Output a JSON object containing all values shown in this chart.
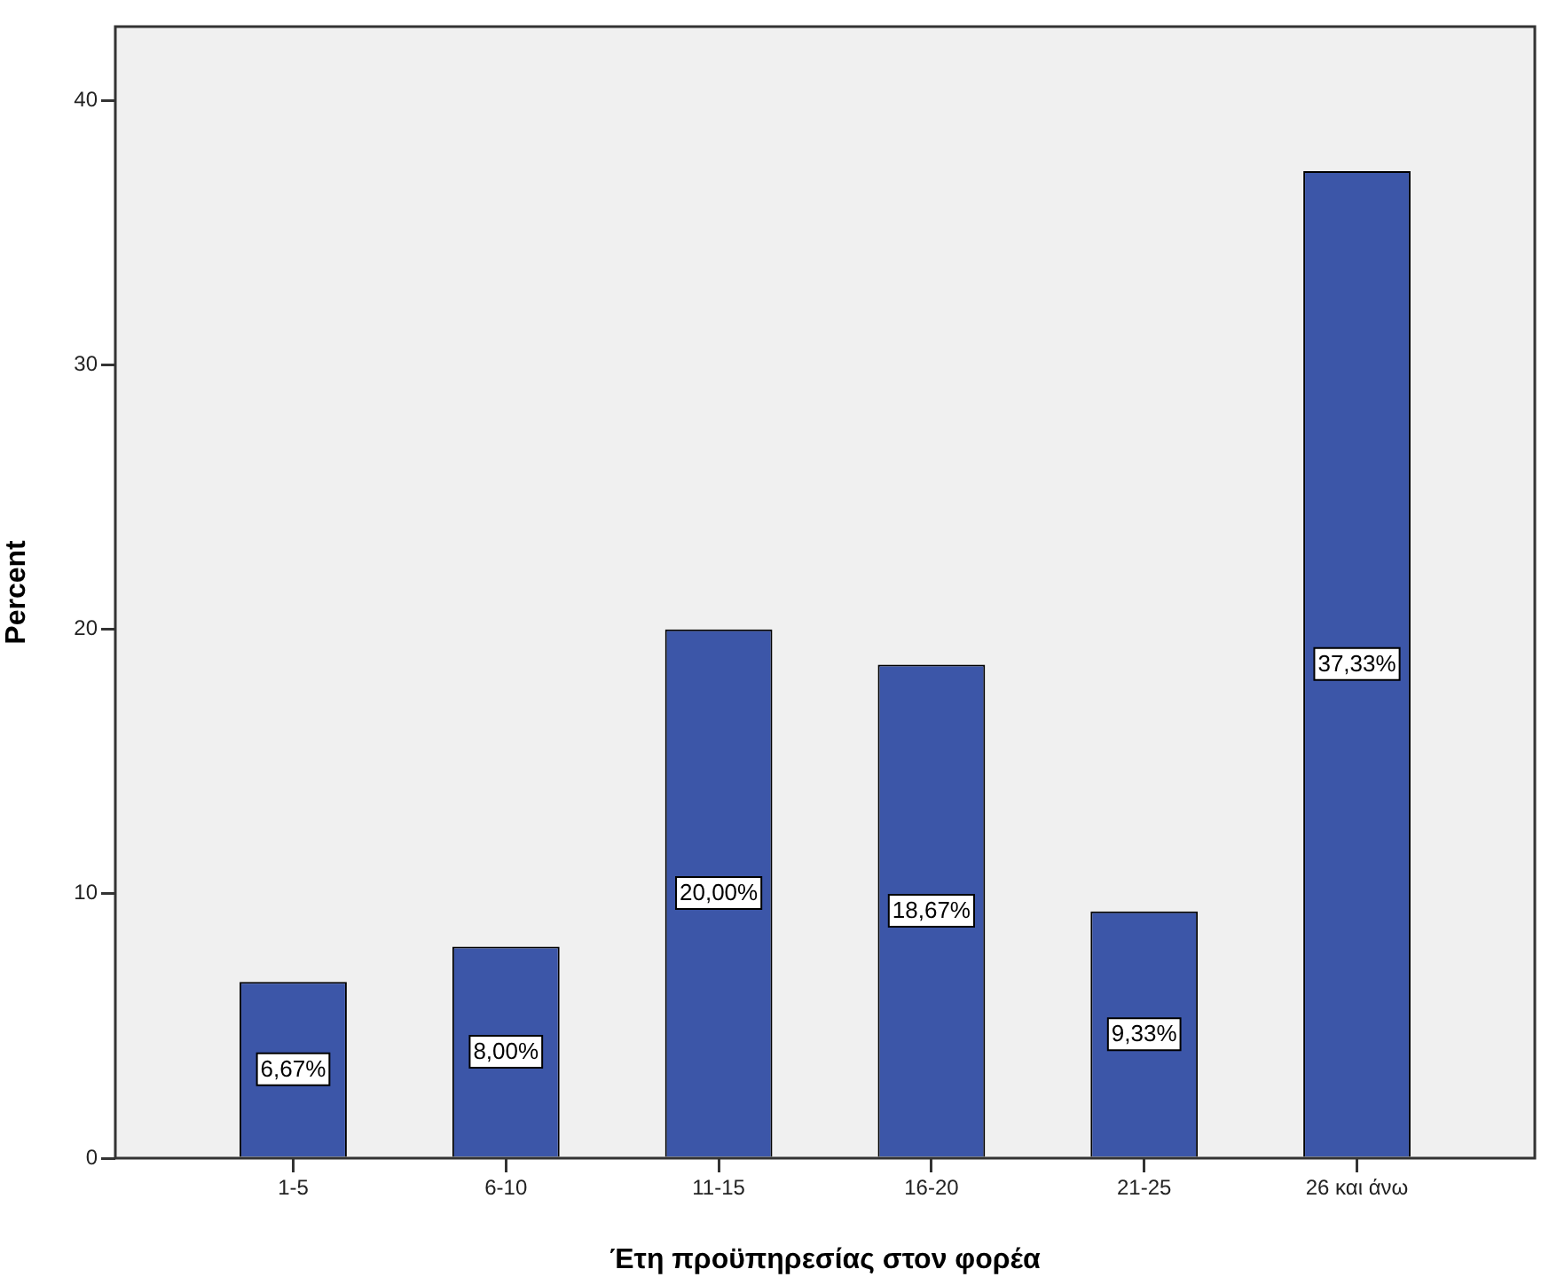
{
  "chart_data": {
    "type": "bar",
    "xlabel": "Έτη προϋπηρεσίας στον φορέα",
    "ylabel": "Percent",
    "categories": [
      "1-5",
      "6-10",
      "11-15",
      "16-20",
      "21-25",
      "26 και άνω"
    ],
    "values": [
      6.67,
      8.0,
      20.0,
      18.67,
      9.33,
      37.33
    ],
    "value_labels": [
      "6,67%",
      "8,00%",
      "20,00%",
      "18,67%",
      "9,33%",
      "37,33%"
    ],
    "color": "#3c56a8",
    "ylim": [
      0,
      42.8
    ],
    "yticks": [
      0,
      10,
      20,
      30,
      40
    ]
  }
}
